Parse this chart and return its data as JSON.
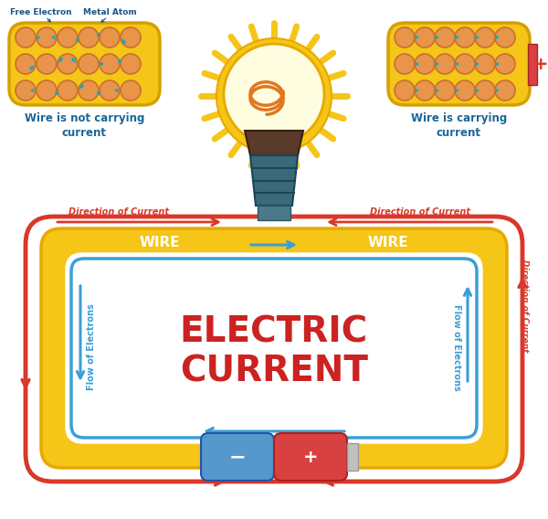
{
  "bg_color": "#ffffff",
  "title_text": "ELECTRIC\nCURRENT",
  "title_color": "#cc2222",
  "title_fontsize": 28,
  "wire_color": "#f5c518",
  "wire_border_color": "#e8a800",
  "red_color": "#d9382a",
  "blue_color": "#3a9fd6",
  "wire_label_color": "#ffffff",
  "wire_label_fontsize": 11,
  "atom_color": "#e8944a",
  "atom_edge_color": "#c87030",
  "electron_color": "#00aacc",
  "label_left_wire": "Wire is not carrying\ncurrent",
  "label_right_wire": "Wire is carrying\ncurrent",
  "free_electron_label": "Free Electron",
  "metal_atom_label": "Metal Atom",
  "battery_neg_color": "#5599cc",
  "battery_pos_color": "#d94040",
  "battery_cap_color": "#c0c0c0",
  "bulb_sun_color": "#f5c518",
  "bulb_glow_color": "#fffde0",
  "bulb_filament_color": "#e07820",
  "bulb_base_color": "#5a3a2a",
  "bulb_socket_color": "#3a6a7a"
}
